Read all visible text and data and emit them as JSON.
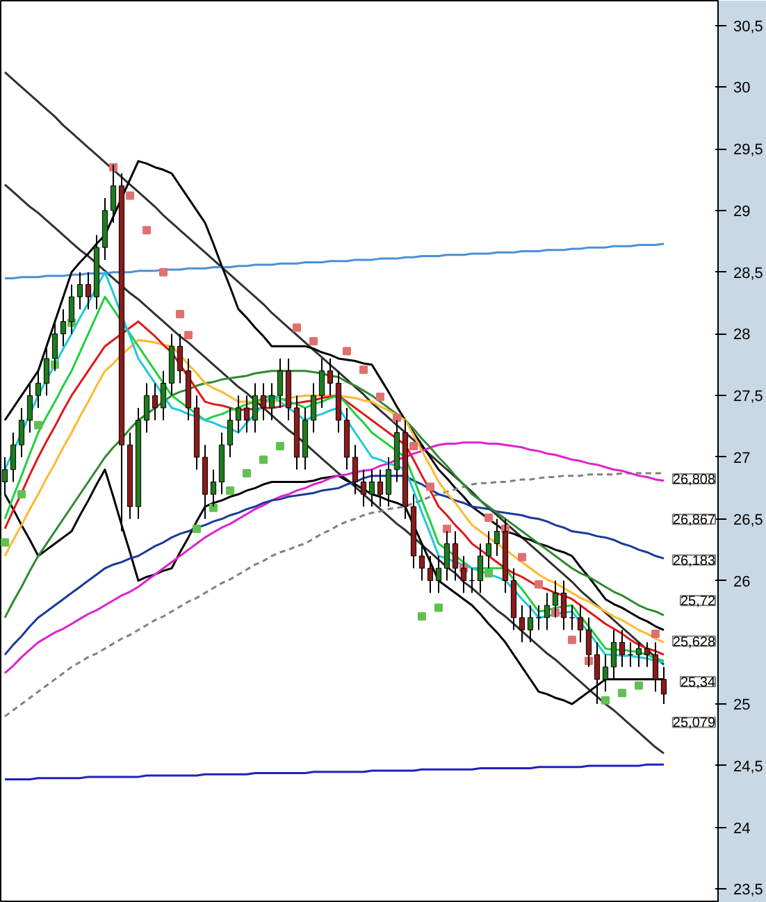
{
  "chart_data": {
    "type": "candlestick",
    "categories": [
      null,
      null,
      null,
      null,
      null,
      null,
      null,
      null,
      null,
      null,
      null,
      null,
      null,
      null,
      null,
      null,
      null,
      null,
      null,
      null,
      null,
      null,
      null,
      null,
      null,
      null,
      null,
      null,
      null,
      null,
      null,
      null,
      null,
      null,
      null,
      null,
      null,
      null,
      null,
      null,
      null,
      null,
      null,
      null,
      null,
      null,
      null,
      null,
      null,
      null,
      null,
      null,
      null,
      null,
      null,
      null,
      null,
      null,
      null,
      null,
      null,
      null,
      null,
      null,
      null,
      null,
      null,
      null,
      null,
      null,
      null,
      null,
      null,
      null,
      null,
      null,
      null,
      null,
      null,
      null
    ],
    "ohlc": [
      [
        26.8,
        27.0,
        26.7,
        26.9
      ],
      [
        26.9,
        27.2,
        26.8,
        27.1
      ],
      [
        27.1,
        27.4,
        27.0,
        27.3
      ],
      [
        27.3,
        27.6,
        27.2,
        27.5
      ],
      [
        27.5,
        27.7,
        27.4,
        27.6
      ],
      [
        27.6,
        27.9,
        27.5,
        27.8
      ],
      [
        27.8,
        28.1,
        27.7,
        28.0
      ],
      [
        28.0,
        28.2,
        27.9,
        28.1
      ],
      [
        28.1,
        28.4,
        28.0,
        28.3
      ],
      [
        28.3,
        28.5,
        28.2,
        28.4
      ],
      [
        28.4,
        28.5,
        28.2,
        28.3
      ],
      [
        28.3,
        28.8,
        28.2,
        28.7
      ],
      [
        28.7,
        29.1,
        28.6,
        29.0
      ],
      [
        29.0,
        29.37,
        28.9,
        29.2
      ],
      [
        29.2,
        29.3,
        26.4,
        27.1
      ],
      [
        27.1,
        27.2,
        26.5,
        26.6
      ],
      [
        26.6,
        27.4,
        26.5,
        27.3
      ],
      [
        27.3,
        27.6,
        27.2,
        27.5
      ],
      [
        27.5,
        27.6,
        27.3,
        27.4
      ],
      [
        27.4,
        27.7,
        27.3,
        27.6
      ],
      [
        27.6,
        28.0,
        27.5,
        27.9
      ],
      [
        27.9,
        28.0,
        27.6,
        27.7
      ],
      [
        27.7,
        27.8,
        27.3,
        27.4
      ],
      [
        27.4,
        27.5,
        26.9,
        27.0
      ],
      [
        27.0,
        27.1,
        26.5,
        26.7
      ],
      [
        26.7,
        26.9,
        26.6,
        26.8
      ],
      [
        26.8,
        27.2,
        26.7,
        27.1
      ],
      [
        27.1,
        27.4,
        27.0,
        27.3
      ],
      [
        27.3,
        27.5,
        27.2,
        27.4
      ],
      [
        27.4,
        27.5,
        27.2,
        27.3
      ],
      [
        27.3,
        27.6,
        27.2,
        27.5
      ],
      [
        27.5,
        27.6,
        27.3,
        27.4
      ],
      [
        27.4,
        27.6,
        27.3,
        27.5
      ],
      [
        27.5,
        27.8,
        27.4,
        27.7
      ],
      [
        27.7,
        27.8,
        27.3,
        27.4
      ],
      [
        27.4,
        27.5,
        26.9,
        27.0
      ],
      [
        27.0,
        27.4,
        26.9,
        27.3
      ],
      [
        27.3,
        27.6,
        27.2,
        27.5
      ],
      [
        27.5,
        27.8,
        27.4,
        27.7
      ],
      [
        27.7,
        27.8,
        27.5,
        27.6
      ],
      [
        27.6,
        27.7,
        27.2,
        27.3
      ],
      [
        27.3,
        27.4,
        26.9,
        27.0
      ],
      [
        27.0,
        27.1,
        26.7,
        26.8
      ],
      [
        26.8,
        26.9,
        26.6,
        26.7
      ],
      [
        26.7,
        26.9,
        26.6,
        26.8
      ],
      [
        26.8,
        26.9,
        26.6,
        26.7
      ],
      [
        26.7,
        27.0,
        26.6,
        26.9
      ],
      [
        26.9,
        27.3,
        26.8,
        27.2
      ],
      [
        27.2,
        27.3,
        26.5,
        26.6
      ],
      [
        26.6,
        26.7,
        26.1,
        26.2
      ],
      [
        26.2,
        26.3,
        26.0,
        26.1
      ],
      [
        26.1,
        26.2,
        25.9,
        26.0
      ],
      [
        26.0,
        26.2,
        25.9,
        26.1
      ],
      [
        26.1,
        26.4,
        26.0,
        26.3
      ],
      [
        26.3,
        26.4,
        26.0,
        26.1
      ],
      [
        26.1,
        26.2,
        25.9,
        26.0
      ],
      [
        26.0,
        26.1,
        25.9,
        26.0
      ],
      [
        26.0,
        26.3,
        25.9,
        26.2
      ],
      [
        26.2,
        26.4,
        26.1,
        26.3
      ],
      [
        26.3,
        26.5,
        26.2,
        26.4
      ],
      [
        26.4,
        26.5,
        25.9,
        26.0
      ],
      [
        26.0,
        26.1,
        25.6,
        25.7
      ],
      [
        25.7,
        25.8,
        25.5,
        25.6
      ],
      [
        25.6,
        25.8,
        25.5,
        25.7
      ],
      [
        25.7,
        25.8,
        25.6,
        25.7
      ],
      [
        25.7,
        25.9,
        25.6,
        25.8
      ],
      [
        25.8,
        26.0,
        25.7,
        25.9
      ],
      [
        25.9,
        26.0,
        25.6,
        25.7
      ],
      [
        25.7,
        25.8,
        25.6,
        25.7
      ],
      [
        25.7,
        25.8,
        25.5,
        25.6
      ],
      [
        25.6,
        25.7,
        25.3,
        25.4
      ],
      [
        25.4,
        25.5,
        25.0,
        25.2
      ],
      [
        25.2,
        25.4,
        25.1,
        25.3
      ],
      [
        25.3,
        25.6,
        25.2,
        25.5
      ],
      [
        25.5,
        25.6,
        25.3,
        25.4
      ],
      [
        25.4,
        25.5,
        25.3,
        25.4
      ],
      [
        25.4,
        25.5,
        25.3,
        25.45
      ],
      [
        25.45,
        25.5,
        25.3,
        25.4
      ],
      [
        25.4,
        25.5,
        25.1,
        25.2
      ],
      [
        25.2,
        25.3,
        25.0,
        25.08
      ]
    ],
    "series": [
      {
        "type": "line",
        "color": "#303030",
        "line_style": "solid",
        "values": [
          30.12,
          30.06,
          30.0,
          29.94,
          29.88,
          29.82,
          29.76,
          29.69,
          29.63,
          29.57,
          29.51,
          29.45,
          29.39,
          29.33,
          29.27,
          29.21,
          29.15,
          29.09,
          29.03,
          28.96,
          28.9,
          28.84,
          28.78,
          28.72,
          28.66,
          28.6,
          28.54,
          28.48,
          28.42,
          28.36,
          28.3,
          28.24,
          28.17,
          28.11,
          28.05,
          27.99,
          27.93,
          27.87,
          27.81,
          27.75,
          27.69,
          27.63,
          27.57,
          27.51,
          27.44,
          27.38,
          27.32,
          27.26,
          27.2,
          27.14,
          27.08,
          27.02,
          26.96,
          26.9,
          26.84,
          26.78,
          26.72,
          26.65,
          26.59,
          26.53,
          26.47,
          26.41,
          26.35,
          26.29,
          26.23,
          26.17,
          26.11,
          26.05,
          25.99,
          25.92,
          25.86,
          25.8,
          25.74,
          25.68,
          25.62,
          25.56,
          25.5,
          25.44,
          25.38,
          25.32
        ]
      },
      {
        "type": "line",
        "color": "#303030",
        "line_style": "solid",
        "values": [
          29.21,
          29.15,
          29.09,
          29.03,
          28.98,
          28.92,
          28.86,
          28.8,
          28.74,
          28.68,
          28.63,
          28.57,
          28.51,
          28.45,
          28.39,
          28.33,
          28.28,
          28.22,
          28.16,
          28.1,
          28.04,
          27.98,
          27.93,
          27.87,
          27.81,
          27.75,
          27.69,
          27.63,
          27.57,
          27.52,
          27.46,
          27.4,
          27.34,
          27.28,
          27.22,
          27.17,
          27.11,
          27.05,
          26.99,
          26.93,
          26.87,
          26.82,
          26.76,
          26.7,
          26.64,
          26.58,
          26.52,
          26.46,
          26.41,
          26.35,
          26.29,
          26.23,
          26.17,
          26.11,
          26.06,
          25.99,
          25.94,
          25.88,
          25.82,
          25.76,
          25.71,
          25.65,
          25.59,
          25.53,
          25.47,
          25.41,
          25.36,
          25.3,
          25.24,
          25.18,
          25.12,
          25.06,
          25.0,
          24.95,
          24.89,
          24.83,
          24.77,
          24.71,
          24.65,
          24.6
        ]
      },
      {
        "type": "line",
        "color": "#4a90d9",
        "line_style": "solid",
        "values": [
          28.45,
          28.45,
          28.46,
          28.46,
          28.46,
          28.47,
          28.47,
          28.47,
          28.48,
          28.48,
          28.49,
          28.49,
          28.49,
          28.5,
          28.5,
          28.5,
          28.51,
          28.51,
          28.51,
          28.52,
          28.52,
          28.52,
          28.53,
          28.53,
          28.53,
          28.54,
          28.54,
          28.54,
          28.55,
          28.55,
          28.56,
          28.56,
          28.56,
          28.57,
          28.57,
          28.57,
          28.58,
          28.58,
          28.58,
          28.59,
          28.59,
          28.59,
          28.6,
          28.6,
          28.6,
          28.61,
          28.61,
          28.61,
          28.62,
          28.62,
          28.63,
          28.63,
          28.63,
          28.64,
          28.64,
          28.64,
          28.65,
          28.65,
          28.65,
          28.66,
          28.66,
          28.66,
          28.67,
          28.67,
          28.67,
          28.68,
          28.68,
          28.68,
          28.69,
          28.69,
          28.7,
          28.7,
          28.7,
          28.71,
          28.71,
          28.71,
          28.72,
          28.72,
          28.72,
          28.73
        ]
      },
      {
        "type": "line",
        "color": "#2020c0",
        "line_style": "solid",
        "values": [
          24.39,
          24.39,
          24.39,
          24.39,
          24.4,
          24.4,
          24.4,
          24.4,
          24.4,
          24.4,
          24.41,
          24.41,
          24.41,
          24.41,
          24.41,
          24.41,
          24.41,
          24.42,
          24.42,
          24.42,
          24.42,
          24.42,
          24.42,
          24.42,
          24.43,
          24.43,
          24.43,
          24.43,
          24.43,
          24.43,
          24.44,
          24.44,
          24.44,
          24.44,
          24.44,
          24.44,
          24.44,
          24.45,
          24.45,
          24.45,
          24.45,
          24.45,
          24.45,
          24.45,
          24.46,
          24.46,
          24.46,
          24.46,
          24.46,
          24.46,
          24.47,
          24.47,
          24.47,
          24.47,
          24.47,
          24.47,
          24.47,
          24.48,
          24.48,
          24.48,
          24.48,
          24.48,
          24.48,
          24.48,
          24.49,
          24.49,
          24.49,
          24.49,
          24.49,
          24.49,
          24.5,
          24.5,
          24.5,
          24.5,
          24.5,
          24.5,
          24.5,
          24.51,
          24.51,
          24.51
        ]
      },
      {
        "type": "line",
        "color": "#000000",
        "line_style": "solid",
        "values": [
          27.3,
          27.4,
          27.5,
          27.6,
          27.7,
          27.9,
          28.1,
          28.3,
          28.5,
          28.58,
          28.65,
          28.73,
          28.8,
          28.95,
          29.1,
          29.25,
          29.4,
          29.38,
          29.35,
          29.33,
          29.3,
          29.2,
          29.1,
          29.0,
          28.9,
          28.73,
          28.55,
          28.38,
          28.2,
          28.13,
          28.05,
          27.98,
          27.9,
          27.9,
          27.9,
          27.9,
          27.9,
          27.88,
          27.85,
          27.83,
          27.8,
          27.79,
          27.78,
          27.76,
          27.75,
          27.64,
          27.53,
          27.41,
          27.3,
          27.2,
          27.1,
          27.0,
          26.9,
          26.83,
          26.75,
          26.68,
          26.6,
          26.55,
          26.5,
          26.45,
          26.4,
          26.38,
          26.35,
          26.33,
          26.3,
          26.28,
          26.25,
          26.23,
          26.2,
          26.11,
          26.03,
          25.94,
          25.85,
          25.81,
          25.78,
          25.74,
          25.7,
          25.67,
          25.63,
          25.6
        ]
      },
      {
        "type": "line",
        "color": "#000000",
        "line_style": "solid",
        "values": [
          26.7,
          26.58,
          26.45,
          26.33,
          26.2,
          26.25,
          26.3,
          26.35,
          26.4,
          26.53,
          26.65,
          26.78,
          26.9,
          26.68,
          26.45,
          26.23,
          26.0,
          26.03,
          26.05,
          26.08,
          26.1,
          26.23,
          26.35,
          26.48,
          26.6,
          26.63,
          26.65,
          26.68,
          26.7,
          26.73,
          26.75,
          26.78,
          26.8,
          26.8,
          26.8,
          26.8,
          26.8,
          26.81,
          26.83,
          26.84,
          26.85,
          26.81,
          26.78,
          26.74,
          26.7,
          26.68,
          26.65,
          26.63,
          26.6,
          26.45,
          26.3,
          26.15,
          26.0,
          25.95,
          25.9,
          25.85,
          25.8,
          25.73,
          25.65,
          25.58,
          25.5,
          25.4,
          25.3,
          25.2,
          25.1,
          25.08,
          25.05,
          25.03,
          25.0,
          25.05,
          25.1,
          25.15,
          25.2,
          25.2,
          25.2,
          25.2,
          25.2,
          25.2,
          25.2,
          25.2
        ]
      },
      {
        "type": "line",
        "color": "#808080",
        "line_style": "dashed",
        "values": [
          24.9,
          24.95,
          25.0,
          25.05,
          25.1,
          25.15,
          25.2,
          25.25,
          25.3,
          25.34,
          25.38,
          25.41,
          25.45,
          25.49,
          25.53,
          25.56,
          25.6,
          25.64,
          25.68,
          25.71,
          25.75,
          25.79,
          25.83,
          25.86,
          25.9,
          25.94,
          25.98,
          26.01,
          26.05,
          26.09,
          26.13,
          26.16,
          26.2,
          26.23,
          26.25,
          26.28,
          26.3,
          26.34,
          26.38,
          26.41,
          26.45,
          26.48,
          26.5,
          26.53,
          26.55,
          26.56,
          26.58,
          26.59,
          26.6,
          26.63,
          26.65,
          26.68,
          26.7,
          26.72,
          26.74,
          26.76,
          26.78,
          26.79,
          26.79,
          26.8,
          26.8,
          26.81,
          26.82,
          26.82,
          26.83,
          26.84,
          26.84,
          26.85,
          26.85,
          26.85,
          26.86,
          26.86,
          26.86,
          26.86,
          26.87,
          26.87,
          26.87,
          26.87,
          26.87,
          26.87
        ]
      },
      {
        "type": "line",
        "color": "#e020d0",
        "line_style": "solid",
        "values": [
          25.25,
          25.31,
          25.38,
          25.44,
          25.5,
          25.54,
          25.58,
          25.61,
          25.65,
          25.69,
          25.73,
          25.76,
          25.8,
          25.84,
          25.88,
          25.91,
          25.95,
          26.0,
          26.05,
          26.1,
          26.15,
          26.2,
          26.25,
          26.3,
          26.35,
          26.39,
          26.43,
          26.46,
          26.5,
          26.54,
          26.58,
          26.61,
          26.65,
          26.68,
          26.7,
          26.73,
          26.75,
          26.78,
          26.8,
          26.83,
          26.85,
          26.86,
          26.88,
          26.89,
          26.9,
          26.93,
          26.95,
          26.98,
          27.0,
          27.03,
          27.05,
          27.08,
          27.1,
          27.11,
          27.11,
          27.12,
          27.12,
          27.12,
          27.11,
          27.11,
          27.1,
          27.09,
          27.08,
          27.06,
          27.05,
          27.03,
          27.02,
          27.0,
          26.98,
          26.97,
          26.95,
          26.94,
          26.92,
          26.9,
          26.89,
          26.87,
          26.85,
          26.84,
          26.82,
          26.81
        ]
      },
      {
        "type": "line",
        "color": "#1a3a9a",
        "line_style": "solid",
        "values": [
          25.4,
          25.48,
          25.55,
          25.63,
          25.7,
          25.75,
          25.8,
          25.85,
          25.9,
          25.95,
          26.0,
          26.05,
          26.1,
          26.13,
          26.15,
          26.18,
          26.2,
          26.24,
          26.28,
          26.31,
          26.35,
          26.38,
          26.4,
          26.43,
          26.45,
          26.48,
          26.5,
          26.53,
          26.55,
          26.58,
          26.6,
          26.63,
          26.65,
          26.66,
          26.68,
          26.69,
          26.7,
          26.71,
          26.73,
          26.74,
          26.75,
          26.78,
          26.8,
          26.83,
          26.85,
          26.85,
          26.85,
          26.85,
          26.85,
          26.81,
          26.78,
          26.74,
          26.7,
          26.68,
          26.65,
          26.63,
          26.6,
          26.59,
          26.58,
          26.56,
          26.55,
          26.54,
          26.53,
          26.51,
          26.5,
          26.48,
          26.45,
          26.43,
          26.4,
          26.39,
          26.38,
          26.36,
          26.35,
          26.33,
          26.3,
          26.28,
          26.25,
          26.23,
          26.2,
          26.18
        ]
      },
      {
        "type": "line",
        "color": "#2e8b2e",
        "line_style": "solid",
        "values": [
          25.7,
          25.83,
          25.95,
          26.08,
          26.2,
          26.3,
          26.4,
          26.5,
          26.6,
          26.7,
          26.8,
          26.9,
          27.0,
          27.08,
          27.15,
          27.23,
          27.3,
          27.35,
          27.4,
          27.45,
          27.5,
          27.53,
          27.55,
          27.58,
          27.6,
          27.61,
          27.63,
          27.64,
          27.65,
          27.66,
          27.68,
          27.69,
          27.7,
          27.7,
          27.7,
          27.7,
          27.7,
          27.69,
          27.68,
          27.66,
          27.65,
          27.61,
          27.58,
          27.54,
          27.5,
          27.45,
          27.4,
          27.35,
          27.3,
          27.23,
          27.15,
          27.08,
          27.0,
          26.93,
          26.85,
          26.78,
          26.7,
          26.65,
          26.6,
          26.55,
          26.5,
          26.45,
          26.4,
          26.35,
          26.3,
          26.25,
          26.2,
          26.15,
          26.1,
          26.06,
          26.03,
          25.99,
          25.95,
          25.91,
          25.88,
          25.84,
          25.8,
          25.77,
          25.75,
          25.72
        ]
      },
      {
        "type": "line",
        "color": "#ffb830",
        "line_style": "solid",
        "values": [
          26.2,
          26.33,
          26.45,
          26.58,
          26.7,
          26.83,
          26.95,
          27.08,
          27.2,
          27.33,
          27.45,
          27.58,
          27.7,
          27.76,
          27.83,
          27.89,
          27.95,
          27.94,
          27.93,
          27.91,
          27.9,
          27.83,
          27.75,
          27.68,
          27.6,
          27.56,
          27.53,
          27.49,
          27.45,
          27.45,
          27.45,
          27.45,
          27.45,
          27.46,
          27.48,
          27.49,
          27.5,
          27.5,
          27.5,
          27.5,
          27.5,
          27.49,
          27.48,
          27.46,
          27.45,
          27.41,
          27.38,
          27.34,
          27.3,
          27.18,
          27.05,
          26.93,
          26.8,
          26.71,
          26.63,
          26.54,
          26.45,
          26.4,
          26.35,
          26.3,
          26.25,
          26.2,
          26.15,
          26.1,
          26.05,
          26.01,
          25.98,
          25.94,
          25.9,
          25.86,
          25.83,
          25.79,
          25.75,
          25.71,
          25.68,
          25.64,
          25.6,
          25.57,
          25.53,
          25.5
        ]
      },
      {
        "type": "line",
        "color": "#e01818",
        "line_style": "solid",
        "values": [
          26.42,
          26.57,
          26.71,
          26.86,
          27.0,
          27.13,
          27.25,
          27.38,
          27.5,
          27.6,
          27.7,
          27.8,
          27.9,
          27.95,
          28.0,
          28.05,
          28.1,
          28.04,
          27.98,
          27.91,
          27.85,
          27.75,
          27.65,
          27.55,
          27.45,
          27.43,
          27.42,
          27.4,
          27.38,
          27.39,
          27.39,
          27.4,
          27.4,
          27.41,
          27.43,
          27.44,
          27.45,
          27.46,
          27.48,
          27.49,
          27.5,
          27.45,
          27.4,
          27.35,
          27.3,
          27.25,
          27.2,
          27.15,
          27.1,
          26.98,
          26.85,
          26.73,
          26.6,
          26.53,
          26.45,
          26.38,
          26.3,
          26.25,
          26.2,
          26.15,
          26.1,
          26.06,
          26.03,
          25.99,
          25.95,
          25.93,
          25.9,
          25.88,
          25.85,
          25.8,
          25.75,
          25.7,
          25.65,
          25.61,
          25.57,
          25.52,
          25.48,
          25.45,
          25.43,
          25.4
        ]
      },
      {
        "type": "line",
        "color": "#20d040",
        "line_style": "solid",
        "values": [
          26.5,
          26.68,
          26.85,
          27.03,
          27.2,
          27.33,
          27.45,
          27.58,
          27.7,
          27.85,
          28.0,
          28.15,
          28.3,
          28.2,
          28.1,
          28.0,
          27.9,
          27.8,
          27.7,
          27.6,
          27.5,
          27.45,
          27.4,
          27.35,
          27.3,
          27.33,
          27.35,
          27.38,
          27.4,
          27.43,
          27.45,
          27.48,
          27.5,
          27.48,
          27.45,
          27.43,
          27.4,
          27.43,
          27.45,
          27.48,
          27.5,
          27.43,
          27.35,
          27.28,
          27.2,
          27.15,
          27.1,
          27.05,
          27.0,
          26.83,
          26.65,
          26.48,
          26.3,
          26.25,
          26.2,
          26.15,
          26.1,
          26.1,
          26.1,
          26.1,
          26.1,
          26.01,
          25.93,
          25.84,
          25.75,
          25.76,
          25.78,
          25.79,
          25.8,
          25.71,
          25.63,
          25.54,
          25.45,
          25.44,
          25.44,
          25.43,
          25.42,
          25.4,
          25.37,
          25.35
        ]
      },
      {
        "type": "line",
        "color": "#20c8d8",
        "line_style": "solid",
        "values": [
          26.9,
          27.05,
          27.2,
          27.35,
          27.5,
          27.63,
          27.75,
          27.88,
          28.0,
          28.13,
          28.25,
          28.38,
          28.5,
          28.33,
          28.15,
          27.98,
          27.8,
          27.7,
          27.6,
          27.5,
          27.4,
          27.38,
          27.35,
          27.33,
          27.3,
          27.28,
          27.25,
          27.23,
          27.2,
          27.28,
          27.35,
          27.43,
          27.5,
          27.45,
          27.4,
          27.35,
          27.3,
          27.33,
          27.35,
          27.38,
          27.4,
          27.3,
          27.2,
          27.1,
          27.0,
          26.98,
          26.95,
          26.93,
          26.9,
          26.73,
          26.55,
          26.38,
          26.2,
          26.18,
          26.15,
          26.13,
          26.1,
          26.08,
          26.05,
          26.03,
          26.0,
          25.93,
          25.85,
          25.78,
          25.7,
          25.71,
          25.73,
          25.74,
          25.75,
          25.66,
          25.58,
          25.49,
          25.4,
          25.4,
          25.39,
          25.39,
          25.38,
          25.37,
          25.35,
          25.34
        ]
      },
      {
        "type": "scatter",
        "marker": "square",
        "color": "#e07070",
        "values": [
          null,
          null,
          null,
          null,
          null,
          null,
          null,
          null,
          null,
          null,
          null,
          null,
          null,
          29.35,
          null,
          29.12,
          null,
          28.84,
          null,
          28.5,
          null,
          28.16,
          27.99,
          null,
          null,
          null,
          null,
          null,
          null,
          null,
          null,
          null,
          null,
          null,
          null,
          28.05,
          null,
          27.94,
          null,
          null,
          null,
          27.86,
          null,
          27.71,
          null,
          27.49,
          null,
          27.32,
          null,
          27.09,
          null,
          26.76,
          null,
          26.42,
          null,
          26.1,
          null,
          null,
          26.51,
          null,
          26.42,
          null,
          26.19,
          null,
          25.97,
          null,
          25.74,
          null,
          25.52,
          null,
          25.35,
          null,
          null,
          null,
          null,
          null,
          null,
          null,
          25.57,
          null
        ]
      },
      {
        "type": "scatter",
        "marker": "square",
        "color": "#60c050",
        "values": [
          26.31,
          null,
          26.7,
          null,
          27.26,
          null,
          27.75,
          null,
          28.09,
          null,
          null,
          null,
          null,
          null,
          null,
          null,
          null,
          null,
          null,
          null,
          null,
          null,
          null,
          26.42,
          null,
          26.59,
          null,
          26.73,
          null,
          26.87,
          null,
          26.98,
          null,
          27.09,
          null,
          null,
          null,
          null,
          null,
          null,
          null,
          null,
          null,
          null,
          null,
          null,
          null,
          null,
          null,
          null,
          25.71,
          null,
          25.78,
          null,
          null,
          null,
          null,
          null,
          26.06,
          null,
          null,
          null,
          null,
          null,
          null,
          null,
          null,
          null,
          null,
          null,
          null,
          null,
          25.03,
          null,
          25.09,
          null,
          25.15,
          null,
          null,
          null
        ]
      }
    ],
    "annotations": [
      "26,808",
      "26,867",
      "26,183",
      "25,72",
      "25,628",
      "25,34",
      "25,079"
    ],
    "ylim": [
      23.39,
      30.7
    ],
    "yticks": [
      {
        "value": 23.5,
        "label": "23,5"
      },
      24,
      {
        "value": 24.5,
        "label": "24,5"
      },
      25,
      26,
      {
        "value": 26.5,
        "label": "26,5"
      },
      27,
      {
        "value": 27.5,
        "label": "27,5"
      },
      28,
      {
        "value": 28.5,
        "label": "28,5"
      },
      29,
      {
        "value": 29.5,
        "label": "29,5"
      },
      30,
      {
        "value": 30.5,
        "label": "30,5"
      }
    ],
    "tick_labels": "y",
    "grid": false
  }
}
